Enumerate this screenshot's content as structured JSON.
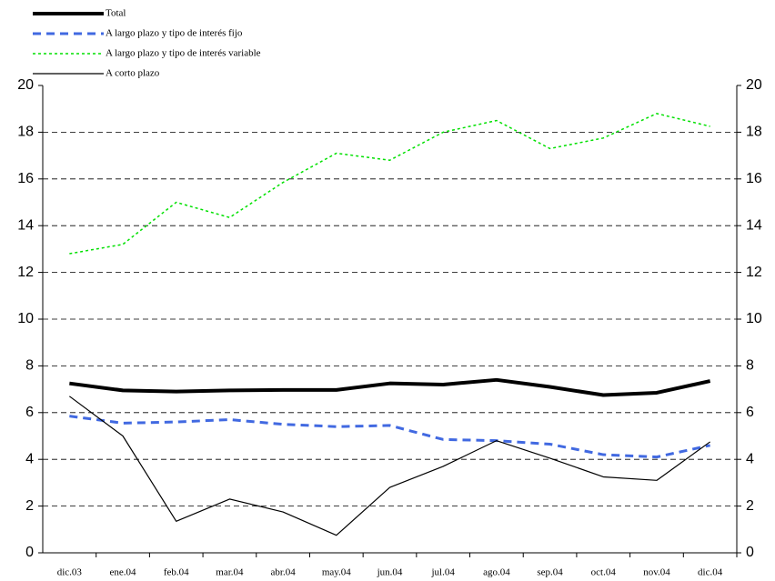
{
  "chart_data": {
    "type": "line",
    "categories": [
      "dic.03",
      "ene.04",
      "feb.04",
      "mar.04",
      "abr.04",
      "may.04",
      "jun.04",
      "jul.04",
      "ago.04",
      "sep.04",
      "oct.04",
      "nov.04",
      "dic.04"
    ],
    "series": [
      {
        "name": "Total",
        "color": "#000000",
        "style": "thick",
        "values": [
          7.25,
          6.95,
          6.9,
          6.95,
          6.97,
          6.97,
          7.25,
          7.2,
          7.4,
          7.1,
          6.75,
          6.85,
          7.35
        ]
      },
      {
        "name": "A largo plazo y tipo de interés fijo",
        "color": "#4169e1",
        "style": "dashed",
        "values": [
          5.85,
          5.55,
          5.6,
          5.7,
          5.5,
          5.4,
          5.45,
          4.85,
          4.8,
          4.65,
          4.2,
          4.1,
          4.6
        ]
      },
      {
        "name": "A largo plazo y tipo de interés variable",
        "color": "#00e000",
        "style": "dotted",
        "values": [
          12.8,
          13.2,
          15.0,
          14.35,
          15.85,
          17.1,
          16.8,
          18.0,
          18.5,
          17.3,
          17.75,
          18.8,
          18.25
        ]
      },
      {
        "name": "A corto plazo",
        "color": "#000000",
        "style": "thin",
        "values": [
          6.7,
          5.0,
          1.35,
          2.3,
          1.75,
          0.75,
          2.8,
          3.7,
          4.8,
          4.05,
          3.25,
          3.1,
          4.75
        ]
      }
    ],
    "ylim": [
      0,
      20
    ],
    "yticks": [
      0,
      2,
      4,
      6,
      8,
      10,
      12,
      14,
      16,
      18,
      20
    ],
    "y2lim": [
      0,
      20
    ],
    "y2ticks": [
      0,
      2,
      4,
      6,
      8,
      10,
      12,
      14,
      16,
      18,
      20
    ],
    "grid": true,
    "legend": "top-left"
  }
}
